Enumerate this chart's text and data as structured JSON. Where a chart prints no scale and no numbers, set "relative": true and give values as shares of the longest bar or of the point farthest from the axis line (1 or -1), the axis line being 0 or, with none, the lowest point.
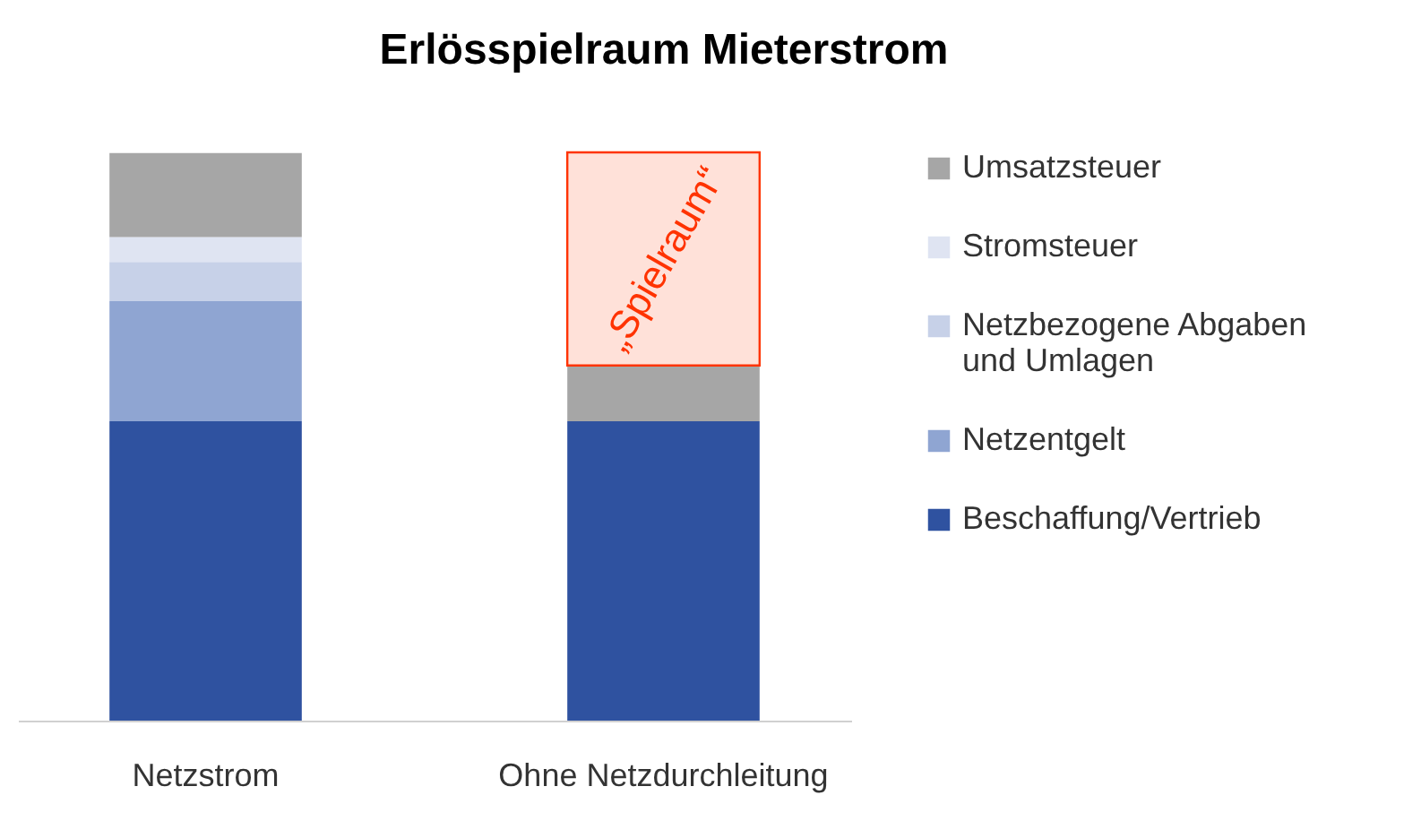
{
  "chart_data": {
    "type": "bar",
    "title": "Erlösspielraum Mieterstrom",
    "categories": [
      "Netzstrom",
      "Ohne Netzdurchleitung"
    ],
    "stacked": true,
    "relative": true,
    "legend": "right",
    "series": [
      {
        "name": "Beschaffung/Vertrieb",
        "color": "#2f52a0",
        "values": [
          0.527,
          0.527
        ]
      },
      {
        "name": "Netzentgelt",
        "color": "#8fa5d2",
        "values": [
          0.211,
          null
        ]
      },
      {
        "name": "Netzbezogene Abgaben und Umlagen",
        "color": "#c7d1e8",
        "values": [
          0.069,
          null
        ]
      },
      {
        "name": "Stromsteuer",
        "color": "#dfe4f2",
        "values": [
          0.044,
          null
        ]
      },
      {
        "name": "Umsatzsteuer",
        "color": "#a6a6a6",
        "values": [
          0.148,
          0.098
        ]
      },
      {
        "color": "#ff3300",
        "values": [
          null,
          0.375
        ]
      }
    ],
    "annotations": [
      "„Spielraum“"
    ]
  }
}
